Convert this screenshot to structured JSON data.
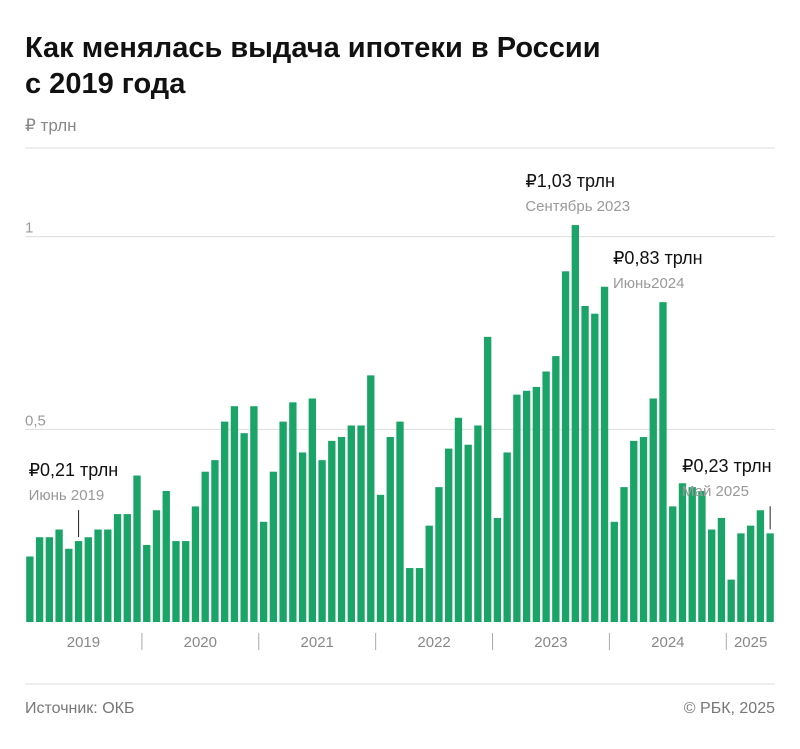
{
  "chart_data": {
    "type": "bar",
    "title": "Как менялась выдача ипотеки в России",
    "title_line2": "с 2019 года",
    "unit": "₽ трлн",
    "source": "Источник: ОКБ",
    "credit": "© РБК, 2025",
    "color": "#1ba468",
    "categories": [
      null,
      null,
      null,
      null,
      null,
      null,
      null,
      null,
      null,
      null,
      null,
      null,
      null,
      null,
      null,
      null,
      null,
      null,
      null,
      null,
      null,
      null,
      null,
      null,
      null,
      null,
      null,
      null,
      null,
      null,
      null,
      null,
      null,
      null,
      null,
      null,
      null,
      null,
      null,
      null,
      null,
      null,
      null,
      null,
      null,
      null,
      null,
      null,
      null,
      null,
      null,
      null,
      null,
      null,
      null,
      null,
      null,
      null,
      null,
      null,
      null,
      null,
      null,
      null,
      null,
      null,
      null,
      null,
      null,
      null,
      null,
      null,
      null,
      null,
      null,
      null,
      null
    ],
    "values": [
      0.17,
      0.22,
      0.22,
      0.24,
      0.19,
      0.21,
      0.22,
      0.24,
      0.24,
      0.28,
      0.28,
      0.38,
      0.2,
      0.29,
      0.34,
      0.21,
      0.21,
      0.3,
      0.39,
      0.42,
      0.52,
      0.56,
      0.49,
      0.56,
      0.26,
      0.39,
      0.52,
      0.57,
      0.44,
      0.58,
      0.42,
      0.47,
      0.48,
      0.51,
      0.51,
      0.64,
      0.33,
      0.48,
      0.52,
      0.14,
      0.14,
      0.25,
      0.35,
      0.45,
      0.53,
      0.46,
      0.51,
      0.74,
      0.27,
      0.44,
      0.59,
      0.6,
      0.61,
      0.65,
      0.69,
      0.91,
      1.03,
      0.82,
      0.8,
      0.87,
      0.26,
      0.35,
      0.47,
      0.48,
      0.58,
      0.83,
      0.3,
      0.36,
      0.35,
      0.34,
      0.24,
      0.27,
      0.11,
      0.23,
      0.25,
      0.29,
      0.23
    ],
    "years": [
      "2019",
      "2020",
      "2021",
      "2022",
      "2023",
      "2024",
      "2025"
    ],
    "ylim": [
      0,
      1.23
    ],
    "yticks": [
      {
        "value": 0.5,
        "label": "0,5"
      },
      1
    ],
    "grid": true,
    "annotations": [
      {
        "index": 5,
        "label": "₽0,21 трлн",
        "sub": "Июнь 2019"
      },
      {
        "index": 56,
        "label": "₽1,03 трлн",
        "sub": "Сентябрь 2023"
      },
      {
        "index": 65,
        "label": "₽0,83 трлн",
        "sub": "Июнь2024"
      },
      {
        "index": 76,
        "label": "₽0,23 трлн",
        "sub": "Май 2025"
      }
    ]
  }
}
